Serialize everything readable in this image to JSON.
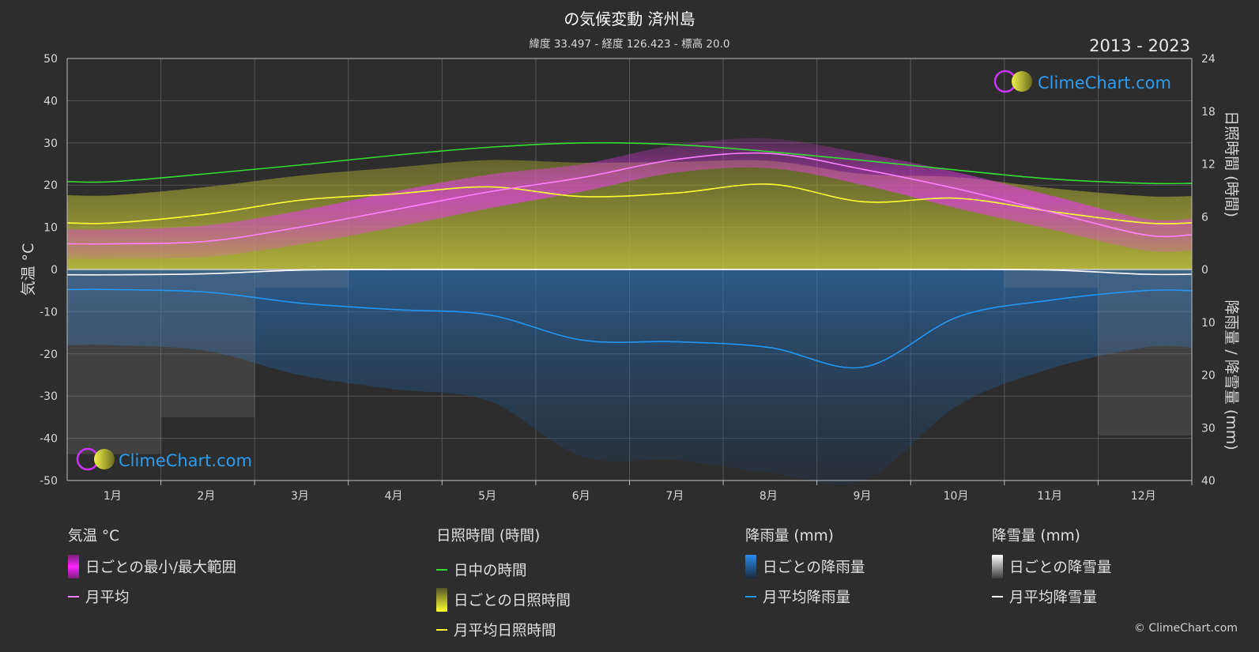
{
  "title": "の気候変動 済州島",
  "subtitle": "緯度 33.497 - 経度 126.423 - 標高 20.0",
  "years": "2013 - 2023",
  "copyright": "© ClimeChart.com",
  "logo_text": "ClimeChart.com",
  "colors": {
    "background": "#2d2d2d",
    "temp_range": "#e040e0",
    "temp_avg": "#ff80ff",
    "daylight": "#33dd33",
    "sunshine_daily": "#b5b53a",
    "sunshine_avg": "#ffff33",
    "rain_daily": "#2b7fd4",
    "rain_avg": "#2196f3",
    "snow_daily": "#9a9a9a",
    "snow_avg": "#ffffff",
    "brand_blue": "#2b9cf0"
  },
  "chart_data": {
    "type": "line",
    "categories": [
      "1月",
      "2月",
      "3月",
      "4月",
      "5月",
      "6月",
      "7月",
      "8月",
      "9月",
      "10月",
      "11月",
      "12月"
    ],
    "left_axis": {
      "label": "気温 °C",
      "ylim": [
        -50,
        50
      ],
      "ticks": [
        "50",
        "40",
        "30",
        "20",
        "10",
        "0",
        "-10",
        "-20",
        "-30",
        "-40",
        "-50"
      ]
    },
    "right_axis_top": {
      "label": "日照時間 (時間)",
      "ylim": [
        0,
        24
      ],
      "ticks": [
        "24",
        "18",
        "12",
        "6",
        "0"
      ]
    },
    "right_axis_bottom": {
      "label": "降雨量 / 降雪量 (mm)",
      "ylim": [
        0,
        40
      ],
      "ticks": [
        "10",
        "20",
        "30",
        "40"
      ]
    },
    "grid": true,
    "series": [
      {
        "name": "日中の時間",
        "unit": "時間",
        "values": [
          10.0,
          10.9,
          11.9,
          13.0,
          13.9,
          14.4,
          14.2,
          13.4,
          12.4,
          11.3,
          10.3,
          9.8
        ]
      },
      {
        "name": "月平均日照時間",
        "unit": "時間",
        "values": [
          5.3,
          6.3,
          7.9,
          8.6,
          9.4,
          8.3,
          8.7,
          9.7,
          7.7,
          8.1,
          6.6,
          5.3
        ]
      },
      {
        "name": "月平均",
        "unit": "°C",
        "values": [
          6.1,
          6.7,
          10.1,
          14.2,
          18.4,
          21.8,
          26.1,
          27.5,
          23.7,
          19.1,
          13.6,
          8.2
        ]
      },
      {
        "name": "日ごとの最小/最大範囲 (最小)",
        "unit": "°C",
        "values": [
          2.5,
          3.0,
          6.0,
          10.0,
          14.5,
          18.5,
          23.0,
          24.0,
          20.0,
          14.5,
          9.5,
          4.5
        ]
      },
      {
        "name": "日ごとの最小/最大範囲 (最大)",
        "unit": "°C",
        "values": [
          9.5,
          10.5,
          14.0,
          18.5,
          22.5,
          25.0,
          29.5,
          31.0,
          27.5,
          23.0,
          17.5,
          12.0
        ]
      },
      {
        "name": "月平均降雨量",
        "unit": "mm",
        "values": [
          3.8,
          4.3,
          6.4,
          7.6,
          8.6,
          13.4,
          13.7,
          14.8,
          18.5,
          9.0,
          5.8,
          4.0
        ]
      },
      {
        "name": "月平均降雪量",
        "unit": "mm",
        "values": [
          1.0,
          0.8,
          0.1,
          0.0,
          0.0,
          0.0,
          0.0,
          0.0,
          0.0,
          0.0,
          0.1,
          0.9
        ]
      }
    ]
  },
  "legend": {
    "groups": [
      {
        "heading": "気温 °C",
        "items": [
          {
            "label": "日ごとの最小/最大範囲",
            "icon": "range-swatch"
          },
          {
            "label": "月平均",
            "icon": "line-swatch"
          }
        ]
      },
      {
        "heading": "日照時間 (時間)",
        "items": [
          {
            "label": "日中の時間",
            "icon": "line-swatch"
          },
          {
            "label": "日ごとの日照時間",
            "icon": "range-swatch"
          },
          {
            "label": "月平均日照時間",
            "icon": "line-swatch"
          }
        ]
      },
      {
        "heading": "降雨量 (mm)",
        "items": [
          {
            "label": "日ごとの降雨量",
            "icon": "range-swatch"
          },
          {
            "label": "月平均降雨量",
            "icon": "line-swatch"
          }
        ]
      },
      {
        "heading": "降雪量 (mm)",
        "items": [
          {
            "label": "日ごとの降雪量",
            "icon": "range-swatch"
          },
          {
            "label": "月平均降雪量",
            "icon": "line-swatch"
          }
        ]
      }
    ]
  }
}
